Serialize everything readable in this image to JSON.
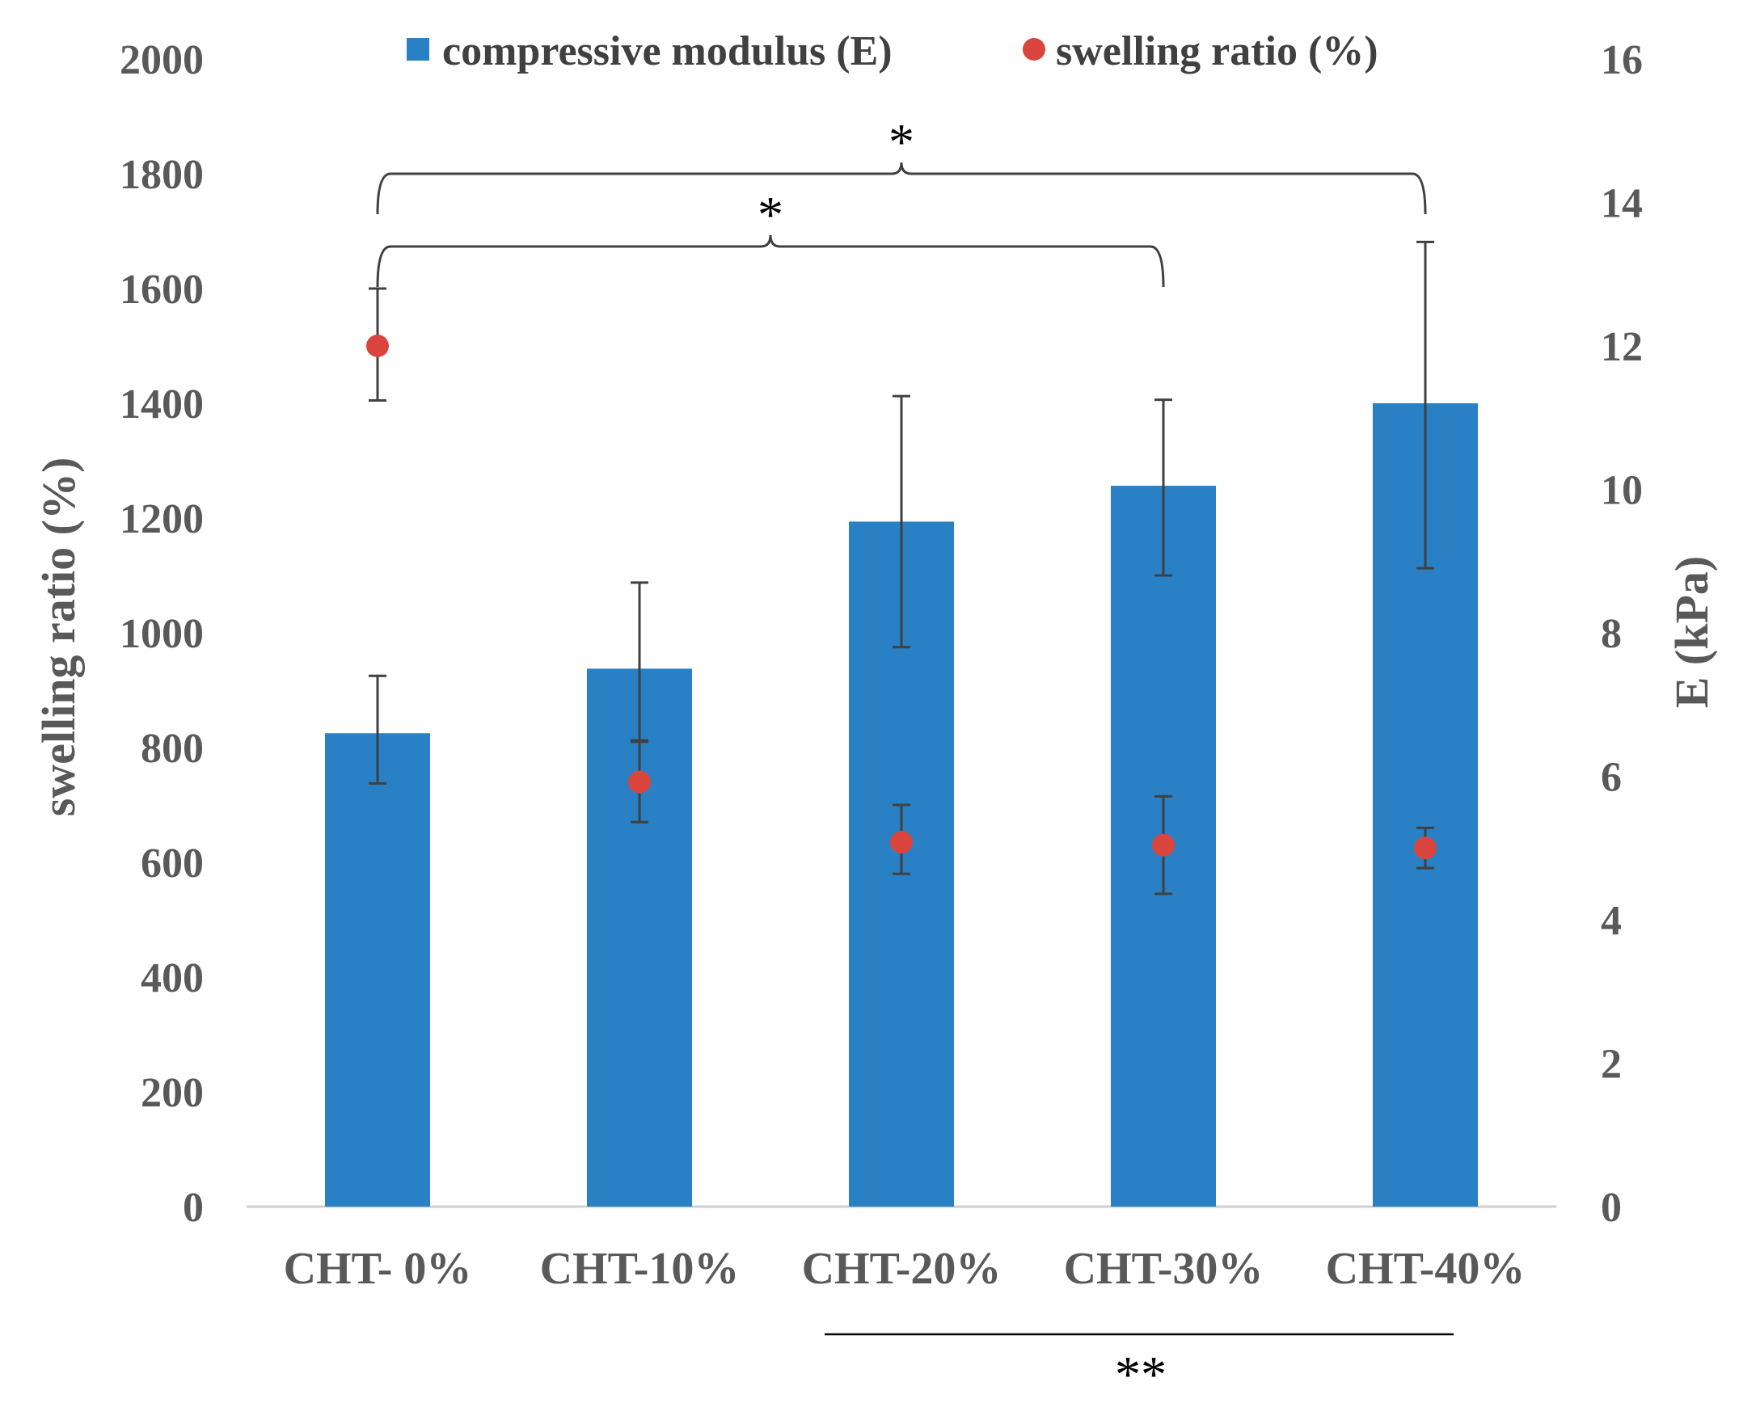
{
  "chart_data": {
    "type": "bar",
    "categories": [
      "CHT- 0%",
      "CHT-10%",
      "CHT-20%",
      "CHT-30%",
      "CHT-40%"
    ],
    "series": [
      {
        "name": "compressive modulus (E)",
        "type": "bar",
        "axis": "right",
        "color": "#2980c4",
        "values": [
          6.6,
          7.5,
          9.55,
          10.05,
          11.2
        ],
        "error_low": [
          5.9,
          6.5,
          7.8,
          8.8,
          8.9
        ],
        "error_high": [
          7.4,
          8.7,
          11.3,
          11.25,
          13.45
        ]
      },
      {
        "name": "swelling ratio (%)",
        "type": "scatter",
        "axis": "left",
        "color": "#d9453d",
        "values": [
          1500,
          740,
          635,
          630,
          625
        ],
        "error_low": [
          1405,
          670,
          580,
          545,
          590
        ],
        "error_high": [
          1600,
          810,
          700,
          715,
          660
        ]
      }
    ],
    "ylabel": "swelling ratio (%)",
    "y2label": "E (kPa)",
    "ylim": [
      0,
      2000
    ],
    "y2lim": [
      0,
      16
    ],
    "yticks": [
      "0",
      "200",
      "400",
      "600",
      "800",
      "1000",
      "1200",
      "1400",
      "1600",
      "1800",
      "2000"
    ],
    "y2ticks": [
      "0",
      "2",
      "4",
      "6",
      "8",
      "10",
      "12",
      "14",
      "16"
    ],
    "grid": false,
    "legend_position": "top",
    "significance": [
      {
        "label": "*",
        "from": 0,
        "to": 4,
        "level": "upper"
      },
      {
        "label": "*",
        "from": 0,
        "to": 3,
        "level": "lower"
      },
      {
        "label": "**",
        "from": 2,
        "to": 4,
        "level": "below-axis"
      }
    ]
  }
}
